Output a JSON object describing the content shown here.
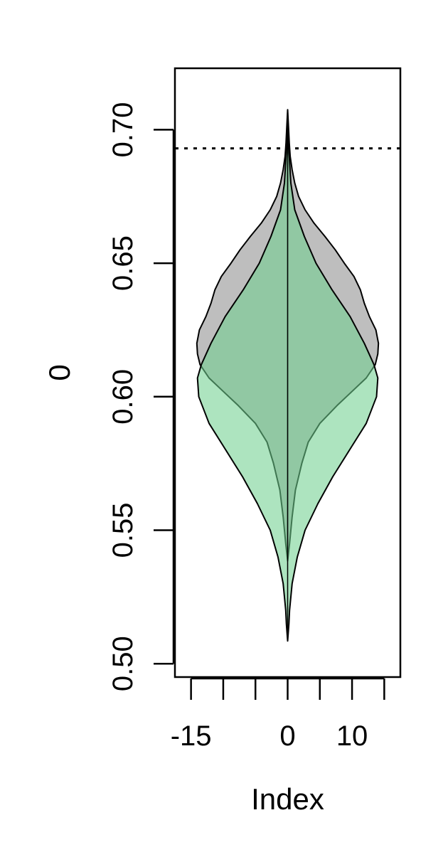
{
  "chart_data": {
    "type": "violin",
    "xlabel": "Index",
    "ylabel": "0",
    "xlim": [
      -17.5,
      17.5
    ],
    "ylim": [
      0.495,
      0.723
    ],
    "x_ticks": [
      -15,
      -10,
      -5,
      0,
      5,
      10,
      15
    ],
    "x_tick_labels": [
      "-15",
      "",
      "",
      "0",
      "",
      "10",
      ""
    ],
    "y_ticks": [
      0.5,
      0.55,
      0.6,
      0.65,
      0.7
    ],
    "y_tick_labels": [
      "0.50",
      "0.55",
      "0.60",
      "0.65",
      "0.70"
    ],
    "reference_line": {
      "y": 0.693,
      "style": "dotted"
    },
    "series": [
      {
        "color": "#bebebe",
        "center_x": 0,
        "profile": [
          [
            0.5385,
            0.0
          ],
          [
            0.545,
            0.3
          ],
          [
            0.555,
            0.7
          ],
          [
            0.565,
            1.2
          ],
          [
            0.575,
            2.2
          ],
          [
            0.583,
            3.2
          ],
          [
            0.59,
            5.0
          ],
          [
            0.597,
            7.8
          ],
          [
            0.602,
            10.0
          ],
          [
            0.607,
            12.2
          ],
          [
            0.612,
            13.6
          ],
          [
            0.616,
            14.0
          ],
          [
            0.62,
            14.1
          ],
          [
            0.625,
            13.7
          ],
          [
            0.63,
            12.7
          ],
          [
            0.635,
            11.9
          ],
          [
            0.64,
            11.3
          ],
          [
            0.645,
            10.3
          ],
          [
            0.65,
            8.8
          ],
          [
            0.655,
            7.4
          ],
          [
            0.66,
            5.8
          ],
          [
            0.665,
            4.1
          ],
          [
            0.67,
            2.7
          ],
          [
            0.675,
            1.7
          ],
          [
            0.68,
            1.1
          ],
          [
            0.685,
            0.7
          ],
          [
            0.69,
            0.4
          ],
          [
            0.695,
            0.25
          ],
          [
            0.7,
            0.15
          ],
          [
            0.7075,
            0.0
          ]
        ]
      },
      {
        "color": "#6fcf8f",
        "center_x": 0,
        "profile": [
          [
            0.5085,
            0.0
          ],
          [
            0.515,
            0.2
          ],
          [
            0.52,
            0.3
          ],
          [
            0.53,
            0.7
          ],
          [
            0.54,
            1.5
          ],
          [
            0.55,
            2.7
          ],
          [
            0.56,
            4.7
          ],
          [
            0.57,
            7.0
          ],
          [
            0.58,
            9.6
          ],
          [
            0.59,
            12.2
          ],
          [
            0.6,
            13.8
          ],
          [
            0.607,
            14.0
          ],
          [
            0.612,
            13.4
          ],
          [
            0.62,
            11.9
          ],
          [
            0.63,
            9.7
          ],
          [
            0.64,
            6.9
          ],
          [
            0.65,
            4.4
          ],
          [
            0.66,
            2.6
          ],
          [
            0.67,
            1.1
          ],
          [
            0.68,
            0.5
          ],
          [
            0.69,
            0.25
          ],
          [
            0.6995,
            0.0
          ]
        ]
      }
    ]
  }
}
